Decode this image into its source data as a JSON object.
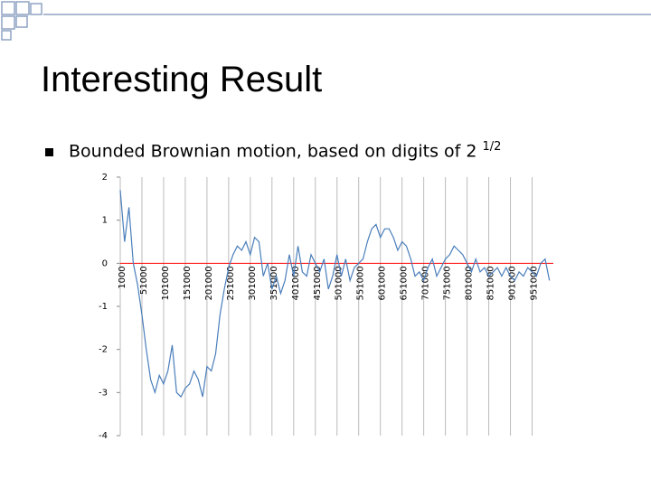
{
  "slide": {
    "title": "Interesting Result",
    "bullet": {
      "text": "Bounded Brownian motion, based on digits of 2",
      "superscript": "1/2"
    }
  },
  "chart_data": {
    "type": "line",
    "color": "#4a7ebb",
    "zero_line_color": "#ff0000",
    "grid": true,
    "x": [
      1000,
      11000,
      21000,
      31000,
      41000,
      51000,
      61000,
      71000,
      81000,
      91000,
      101000,
      111000,
      121000,
      131000,
      141000,
      151000,
      161000,
      171000,
      181000,
      191000,
      201000,
      211000,
      221000,
      231000,
      241000,
      251000,
      261000,
      271000,
      281000,
      291000,
      301000,
      311000,
      321000,
      331000,
      341000,
      351000,
      361000,
      371000,
      381000,
      391000,
      401000,
      411000,
      421000,
      431000,
      441000,
      451000,
      461000,
      471000,
      481000,
      491000,
      501000,
      511000,
      521000,
      531000,
      541000,
      551000,
      561000,
      571000,
      581000,
      591000,
      601000,
      611000,
      621000,
      631000,
      641000,
      651000,
      661000,
      671000,
      681000,
      691000,
      701000,
      711000,
      721000,
      731000,
      741000,
      751000,
      761000,
      771000,
      781000,
      791000,
      801000,
      811000,
      821000,
      831000,
      841000,
      851000,
      861000,
      871000,
      881000,
      891000,
      901000,
      911000,
      921000,
      931000,
      941000,
      951000,
      961000,
      971000,
      981000,
      991000
    ],
    "values": [
      1.7,
      0.5,
      1.3,
      0.0,
      -0.5,
      -1.2,
      -2.0,
      -2.7,
      -3.0,
      -2.6,
      -2.8,
      -2.5,
      -1.9,
      -3.0,
      -3.1,
      -2.9,
      -2.8,
      -2.5,
      -2.7,
      -3.1,
      -2.4,
      -2.5,
      -2.1,
      -1.2,
      -0.6,
      -0.1,
      0.2,
      0.4,
      0.3,
      0.5,
      0.2,
      0.6,
      0.5,
      -0.3,
      0.0,
      -0.6,
      -0.3,
      -0.7,
      -0.4,
      0.2,
      -0.3,
      0.4,
      -0.2,
      -0.3,
      0.2,
      0.0,
      -0.2,
      0.1,
      -0.6,
      -0.3,
      0.2,
      -0.3,
      0.1,
      -0.4,
      -0.1,
      0.0,
      0.1,
      0.5,
      0.8,
      0.9,
      0.6,
      0.8,
      0.8,
      0.6,
      0.3,
      0.5,
      0.4,
      0.1,
      -0.3,
      -0.2,
      -0.4,
      -0.1,
      0.1,
      -0.3,
      -0.1,
      0.1,
      0.2,
      0.4,
      0.3,
      0.2,
      0.0,
      -0.2,
      0.1,
      -0.2,
      -0.1,
      -0.3,
      -0.2,
      -0.1,
      -0.3,
      -0.1,
      -0.3,
      -0.4,
      -0.2,
      -0.3,
      -0.1,
      -0.2,
      -0.3,
      0.0,
      0.1,
      -0.4
    ],
    "xlim": [
      1000,
      1000000
    ],
    "xticks": [
      1000,
      51000,
      101000,
      151000,
      201000,
      251000,
      301000,
      351000,
      401000,
      451000,
      501000,
      551000,
      601000,
      651000,
      701000,
      751000,
      801000,
      851000,
      901000,
      951000
    ],
    "ylim": [
      -4,
      2
    ],
    "yticks": [
      2,
      1,
      0,
      -1,
      -2,
      -3,
      -4
    ]
  }
}
